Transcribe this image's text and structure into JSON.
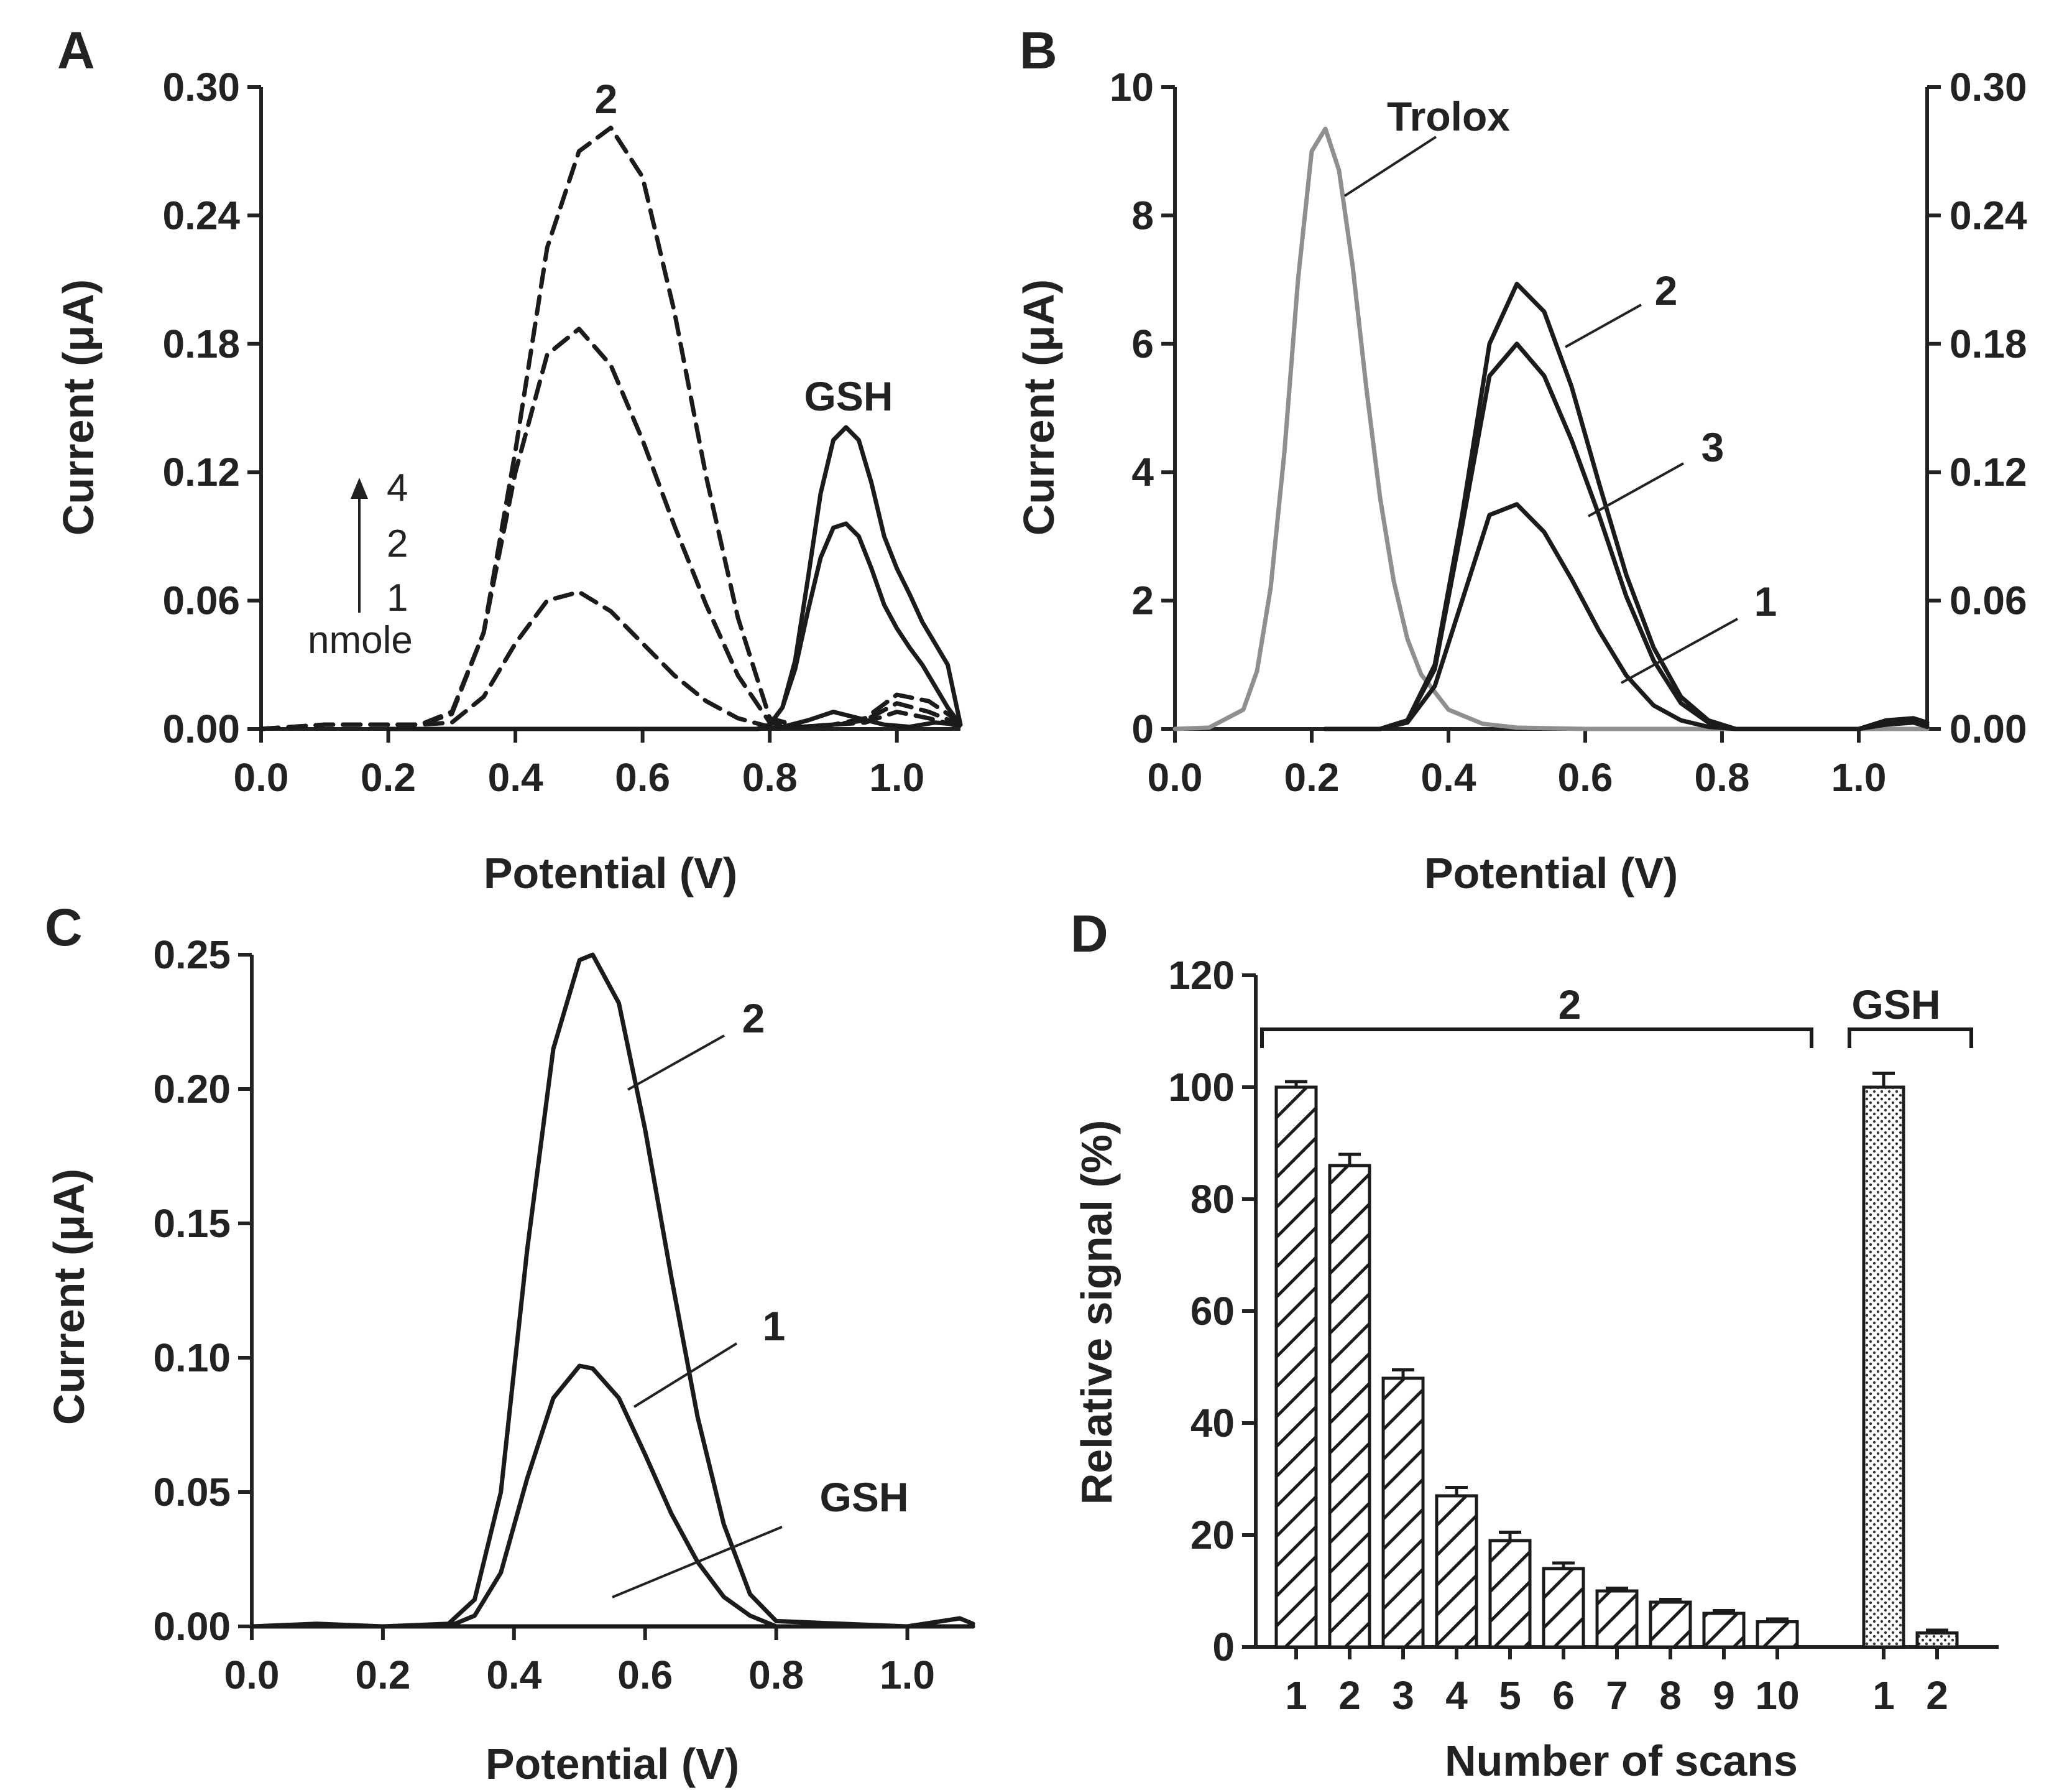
{
  "chart_data": [
    {
      "panel": "A",
      "type": "line",
      "xlabel": "Potential (V)",
      "ylabel": "Current (μA)",
      "xlim": [
        0.0,
        1.1
      ],
      "ylim": [
        0.0,
        0.3
      ],
      "xticks": [
        "0.0",
        "0.2",
        "0.4",
        "0.6",
        "0.8",
        "1.0"
      ],
      "yticks": [
        "0.00",
        "0.06",
        "0.12",
        "0.18",
        "0.24",
        "0.30"
      ],
      "annotations": {
        "compound": "2",
        "gsh": "GSH"
      },
      "legend": {
        "values": [
          "4",
          "2",
          "1"
        ],
        "unit": "nmole"
      },
      "series": [
        {
          "style": "dashed",
          "amount": "4",
          "x": [
            0.0,
            0.05,
            0.1,
            0.15,
            0.2,
            0.25,
            0.3,
            0.35,
            0.4,
            0.45,
            0.5,
            0.55,
            0.6,
            0.65,
            0.7,
            0.75,
            0.8,
            0.85,
            0.9,
            0.95,
            1.0,
            1.05,
            1.1
          ],
          "y": [
            0.0,
            0.001,
            0.002,
            0.002,
            0.002,
            0.002,
            0.008,
            0.045,
            0.13,
            0.225,
            0.27,
            0.281,
            0.258,
            0.195,
            0.118,
            0.052,
            0.005,
            0.001,
            0.002,
            0.005,
            0.016,
            0.013,
            0.003
          ]
        },
        {
          "style": "dashed",
          "amount": "2",
          "x": [
            0.0,
            0.05,
            0.1,
            0.15,
            0.2,
            0.25,
            0.3,
            0.35,
            0.4,
            0.45,
            0.5,
            0.55,
            0.6,
            0.65,
            0.7,
            0.75,
            0.8,
            0.85,
            0.9,
            0.95,
            1.0,
            1.05,
            1.1
          ],
          "y": [
            0.0,
            0.001,
            0.002,
            0.002,
            0.002,
            0.002,
            0.007,
            0.045,
            0.12,
            0.175,
            0.187,
            0.17,
            0.135,
            0.095,
            0.058,
            0.025,
            0.003,
            0.001,
            0.002,
            0.004,
            0.012,
            0.008,
            0.002
          ]
        },
        {
          "style": "dashed",
          "amount": "1",
          "x": [
            0.0,
            0.05,
            0.1,
            0.15,
            0.2,
            0.25,
            0.3,
            0.35,
            0.4,
            0.45,
            0.5,
            0.55,
            0.6,
            0.65,
            0.7,
            0.75,
            0.8,
            0.85,
            0.9,
            0.95,
            1.0,
            1.05,
            1.1
          ],
          "y": [
            0.0,
            0.001,
            0.002,
            0.002,
            0.002,
            0.002,
            0.003,
            0.015,
            0.04,
            0.06,
            0.064,
            0.055,
            0.04,
            0.025,
            0.013,
            0.005,
            0.001,
            0.001,
            0.002,
            0.003,
            0.008,
            0.005,
            0.001
          ]
        },
        {
          "style": "solid",
          "label": "GSH",
          "x": [
            0.2,
            0.3,
            0.4,
            0.5,
            0.6,
            0.7,
            0.78,
            0.8,
            0.82,
            0.84,
            0.86,
            0.88,
            0.9,
            0.92,
            0.94,
            0.96,
            0.98,
            1.0,
            1.02,
            1.04,
            1.06,
            1.08,
            1.1
          ],
          "y": [
            0.0,
            0.0,
            0.0,
            0.0,
            0.0,
            0.0,
            0.0,
            0.002,
            0.01,
            0.032,
            0.07,
            0.11,
            0.135,
            0.141,
            0.135,
            0.115,
            0.09,
            0.075,
            0.063,
            0.05,
            0.04,
            0.03,
            0.002
          ]
        },
        {
          "style": "solid",
          "label": "GSH",
          "x": [
            0.78,
            0.8,
            0.82,
            0.84,
            0.86,
            0.88,
            0.9,
            0.92,
            0.94,
            0.96,
            0.98,
            1.0,
            1.02,
            1.04,
            1.06,
            1.08,
            1.1
          ],
          "y": [
            0.0,
            0.002,
            0.01,
            0.028,
            0.055,
            0.08,
            0.094,
            0.096,
            0.09,
            0.075,
            0.058,
            0.047,
            0.038,
            0.03,
            0.02,
            0.01,
            0.002
          ]
        },
        {
          "style": "solid",
          "x": [
            0.78,
            0.82,
            0.86,
            0.9,
            0.94,
            0.98,
            1.02,
            1.06,
            1.1
          ],
          "y": [
            0.0,
            0.001,
            0.004,
            0.008,
            0.005,
            0.002,
            0.001,
            0.003,
            0.002
          ]
        }
      ]
    },
    {
      "panel": "B",
      "type": "line",
      "xlabel": "Potential (V)",
      "ylabel": "Current (μA)",
      "xlim": [
        0.0,
        1.1
      ],
      "ylim": [
        0,
        10
      ],
      "y2lim": [
        0.0,
        0.3
      ],
      "xticks": [
        "0.0",
        "0.2",
        "0.4",
        "0.6",
        "0.8",
        "1.0"
      ],
      "yticks": [
        "0",
        "2",
        "4",
        "6",
        "8",
        "10"
      ],
      "y2ticks": [
        "0.00",
        "0.06",
        "0.12",
        "0.18",
        "0.24",
        "0.30"
      ],
      "series": [
        {
          "name": "Trolox",
          "color": "#8f8f8f",
          "axis": "left",
          "x": [
            0.0,
            0.05,
            0.1,
            0.12,
            0.14,
            0.16,
            0.18,
            0.2,
            0.22,
            0.24,
            0.26,
            0.28,
            0.3,
            0.32,
            0.34,
            0.36,
            0.4,
            0.45,
            0.5,
            0.6,
            0.8,
            1.1
          ],
          "y": [
            0.0,
            0.02,
            0.3,
            0.9,
            2.2,
            4.3,
            7.0,
            9.0,
            9.35,
            8.7,
            7.2,
            5.3,
            3.6,
            2.3,
            1.4,
            0.85,
            0.3,
            0.08,
            0.02,
            0.0,
            0.0,
            0.0
          ]
        },
        {
          "name": "2",
          "axis": "right",
          "x": [
            0.22,
            0.3,
            0.34,
            0.38,
            0.42,
            0.46,
            0.5,
            0.54,
            0.58,
            0.62,
            0.66,
            0.7,
            0.74,
            0.78,
            0.82,
            0.9,
            1.0,
            1.04,
            1.08,
            1.1
          ],
          "y": [
            0.0,
            0.0,
            0.004,
            0.03,
            0.1,
            0.18,
            0.208,
            0.195,
            0.16,
            0.115,
            0.072,
            0.038,
            0.015,
            0.004,
            0.0,
            0.0,
            0.0,
            0.004,
            0.005,
            0.003
          ]
        },
        {
          "name": "3",
          "axis": "right",
          "x": [
            0.22,
            0.3,
            0.34,
            0.38,
            0.42,
            0.46,
            0.5,
            0.54,
            0.58,
            0.62,
            0.66,
            0.7,
            0.74,
            0.78,
            0.82,
            0.9,
            1.0,
            1.04,
            1.08,
            1.1
          ],
          "y": [
            0.0,
            0.0,
            0.004,
            0.028,
            0.095,
            0.165,
            0.18,
            0.165,
            0.135,
            0.1,
            0.062,
            0.032,
            0.012,
            0.003,
            0.0,
            0.0,
            0.0,
            0.003,
            0.004,
            0.002
          ]
        },
        {
          "name": "1",
          "axis": "right",
          "x": [
            0.22,
            0.3,
            0.34,
            0.38,
            0.42,
            0.46,
            0.5,
            0.54,
            0.58,
            0.62,
            0.66,
            0.7,
            0.74,
            0.78,
            0.82,
            0.9,
            1.0,
            1.04,
            1.08,
            1.1
          ],
          "y": [
            0.0,
            0.0,
            0.003,
            0.02,
            0.06,
            0.1,
            0.105,
            0.092,
            0.07,
            0.046,
            0.025,
            0.011,
            0.004,
            0.001,
            0.0,
            0.0,
            0.0,
            0.002,
            0.003,
            0.001
          ]
        }
      ]
    },
    {
      "panel": "C",
      "type": "line",
      "xlabel": "Potential (V)",
      "ylabel": "Current (μA)",
      "xlim": [
        0.0,
        1.1
      ],
      "ylim": [
        0.0,
        0.25
      ],
      "xticks": [
        "0.0",
        "0.2",
        "0.4",
        "0.6",
        "0.8",
        "1.0"
      ],
      "yticks": [
        "0.00",
        "0.05",
        "0.10",
        "0.15",
        "0.20",
        "0.25"
      ],
      "series": [
        {
          "name": "2",
          "x": [
            0.0,
            0.1,
            0.2,
            0.3,
            0.34,
            0.38,
            0.42,
            0.46,
            0.5,
            0.52,
            0.56,
            0.6,
            0.64,
            0.68,
            0.72,
            0.76,
            0.8,
            0.9,
            1.0,
            1.08,
            1.1
          ],
          "y": [
            0.0,
            0.001,
            0.0,
            0.001,
            0.01,
            0.05,
            0.14,
            0.215,
            0.248,
            0.25,
            0.232,
            0.185,
            0.13,
            0.078,
            0.038,
            0.012,
            0.002,
            0.001,
            0.0,
            0.003,
            0.001
          ]
        },
        {
          "name": "1",
          "x": [
            0.0,
            0.3,
            0.34,
            0.38,
            0.42,
            0.46,
            0.5,
            0.52,
            0.56,
            0.6,
            0.64,
            0.68,
            0.72,
            0.76,
            0.8,
            1.1
          ],
          "y": [
            0.0,
            0.0,
            0.004,
            0.02,
            0.055,
            0.085,
            0.097,
            0.096,
            0.085,
            0.064,
            0.042,
            0.024,
            0.011,
            0.004,
            0.0,
            0.0
          ]
        },
        {
          "name": "GSH",
          "x": [
            0.0,
            0.5,
            1.0,
            1.1
          ],
          "y": [
            0.0,
            0.0,
            0.0,
            0.0
          ]
        }
      ]
    },
    {
      "panel": "D",
      "type": "bar",
      "xlabel": "Number of scans",
      "ylabel": "Relative signal (%)",
      "ylim": [
        0,
        120
      ],
      "yticks": [
        "0",
        "20",
        "40",
        "60",
        "80",
        "100",
        "120"
      ],
      "groups": [
        {
          "name": "2",
          "pattern": "hatch",
          "categories": [
            "1",
            "2",
            "3",
            "4",
            "5",
            "6",
            "7",
            "8",
            "9",
            "10"
          ],
          "values": [
            100,
            86,
            48,
            27,
            19,
            14,
            10,
            8,
            6,
            4.5
          ],
          "errors": [
            1,
            2,
            1.5,
            1.5,
            1.5,
            1,
            0.5,
            0.5,
            0.5,
            0.5
          ]
        },
        {
          "name": "GSH",
          "pattern": "dots",
          "categories": [
            "1",
            "2"
          ],
          "values": [
            100,
            2.5
          ],
          "errors": [
            2.5,
            0.5
          ]
        }
      ]
    }
  ],
  "panel_labels": {
    "a": "A",
    "b": "B",
    "c": "C",
    "d": "D"
  }
}
